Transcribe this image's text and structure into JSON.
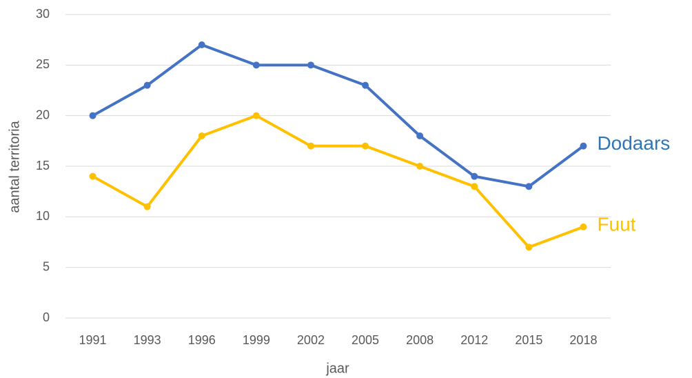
{
  "chart_data": {
    "type": "line",
    "x_label": "jaar",
    "y_label": "aantal territoria",
    "categories": [
      "1991",
      "1993",
      "1996",
      "1999",
      "2002",
      "2005",
      "2008",
      "2012",
      "2015",
      "2018"
    ],
    "series": [
      {
        "name": "Dodaars",
        "color": "#4472c4",
        "label_color": "#2e75b6",
        "values": [
          20,
          23,
          27,
          25,
          25,
          23,
          18,
          14,
          13,
          17
        ]
      },
      {
        "name": "Fuut",
        "color": "#ffc000",
        "label_color": "#ffc000",
        "values": [
          14,
          11,
          18,
          20,
          17,
          17,
          15,
          13,
          7,
          9
        ]
      }
    ],
    "ylim": [
      0,
      30
    ],
    "yticks": [
      0,
      5,
      10,
      15,
      20,
      25,
      30
    ],
    "grid": true
  }
}
